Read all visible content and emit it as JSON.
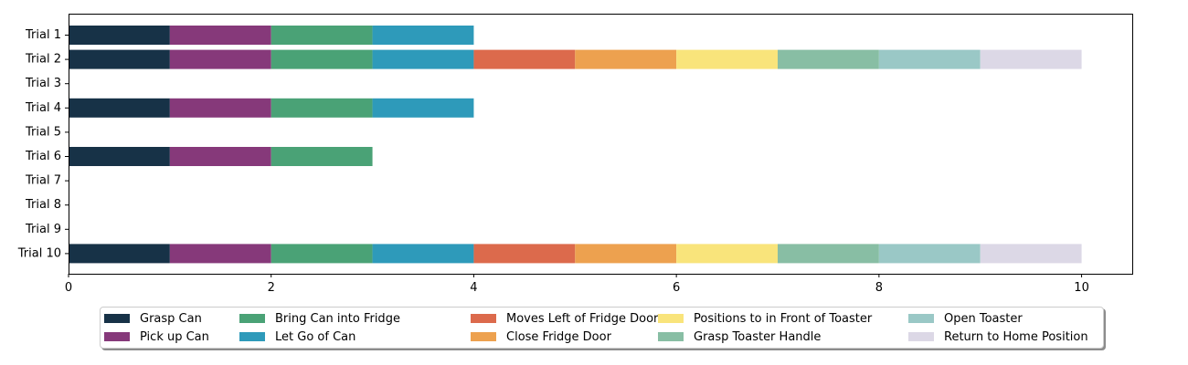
{
  "chart_data": {
    "type": "bar",
    "orientation": "horizontal-stacked",
    "title": "",
    "xlabel": "",
    "ylabel": "",
    "xlim": [
      0,
      10.5
    ],
    "xticks": [
      0,
      2,
      4,
      6,
      8,
      10
    ],
    "grid": false,
    "legend_position": "bottom (below plot)",
    "categories": [
      "Trial 1",
      "Trial 2",
      "Trial 3",
      "Trial 4",
      "Trial 5",
      "Trial 6",
      "Trial 7",
      "Trial 8",
      "Trial 9",
      "Trial 10"
    ],
    "series": [
      {
        "name": "Grasp Can",
        "color": "#173247",
        "values": [
          1,
          1,
          0,
          1,
          0,
          1,
          0,
          0,
          0,
          1
        ]
      },
      {
        "name": "Pick up Can",
        "color": "#86397a",
        "values": [
          1,
          1,
          0,
          1,
          0,
          1,
          0,
          0,
          0,
          1
        ]
      },
      {
        "name": "Bring Can into Fridge",
        "color": "#4aa276",
        "values": [
          1,
          1,
          0,
          1,
          0,
          1,
          0,
          0,
          0,
          1
        ]
      },
      {
        "name": "Let Go of Can",
        "color": "#2e9aba",
        "values": [
          1,
          1,
          0,
          1,
          0,
          0,
          0,
          0,
          0,
          1
        ]
      },
      {
        "name": "Moves Left of Fridge Door",
        "color": "#dc6a4c",
        "values": [
          0,
          1,
          0,
          0,
          0,
          0,
          0,
          0,
          0,
          1
        ]
      },
      {
        "name": "Close Fridge Door",
        "color": "#eda14f",
        "values": [
          0,
          1,
          0,
          0,
          0,
          0,
          0,
          0,
          0,
          1
        ]
      },
      {
        "name": "Positions to in Front of Toaster",
        "color": "#f9e47b",
        "values": [
          0,
          1,
          0,
          0,
          0,
          0,
          0,
          0,
          0,
          1
        ]
      },
      {
        "name": "Grasp Toaster Handle",
        "color": "#88bea4",
        "values": [
          0,
          1,
          0,
          0,
          0,
          0,
          0,
          0,
          0,
          1
        ]
      },
      {
        "name": "Open Toaster",
        "color": "#9ac8c6",
        "values": [
          0,
          1,
          0,
          0,
          0,
          0,
          0,
          0,
          0,
          1
        ]
      },
      {
        "name": "Return to Home Position",
        "color": "#dcd8e6",
        "values": [
          0,
          1,
          0,
          0,
          0,
          0,
          0,
          0,
          0,
          1
        ]
      }
    ]
  }
}
